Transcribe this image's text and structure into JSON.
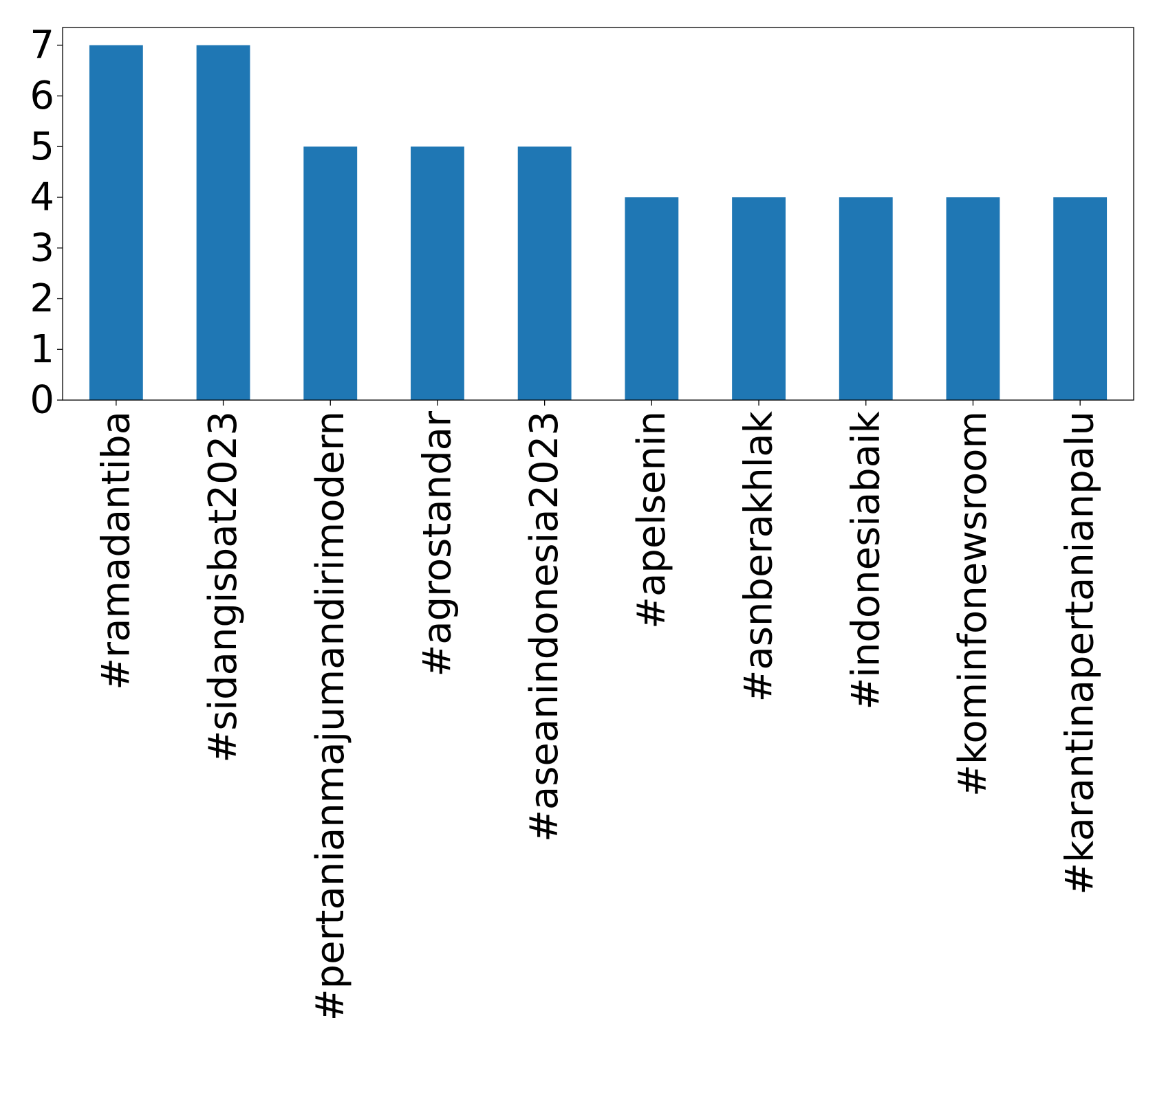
{
  "chart_data": {
    "type": "bar",
    "title": "",
    "xlabel": "",
    "ylabel": "",
    "categories": [
      "#ramadantiba",
      "#sidangisbat2023",
      "#pertanianmajumandirimodern",
      "#agrostandar",
      "#aseanindonesia2023",
      "#apelsenin",
      "#asnberakhlak",
      "#indonesiabaik",
      "#kominfonewsroom",
      "#karantinapertanianpalu"
    ],
    "values": [
      7,
      7,
      5,
      5,
      5,
      4,
      4,
      4,
      4,
      4
    ],
    "ylim": [
      0,
      7.35
    ],
    "yticks": [
      0,
      1,
      2,
      3,
      4,
      5,
      6,
      7
    ],
    "grid": false,
    "legend": "none",
    "bar_color": "#1f77b4"
  }
}
